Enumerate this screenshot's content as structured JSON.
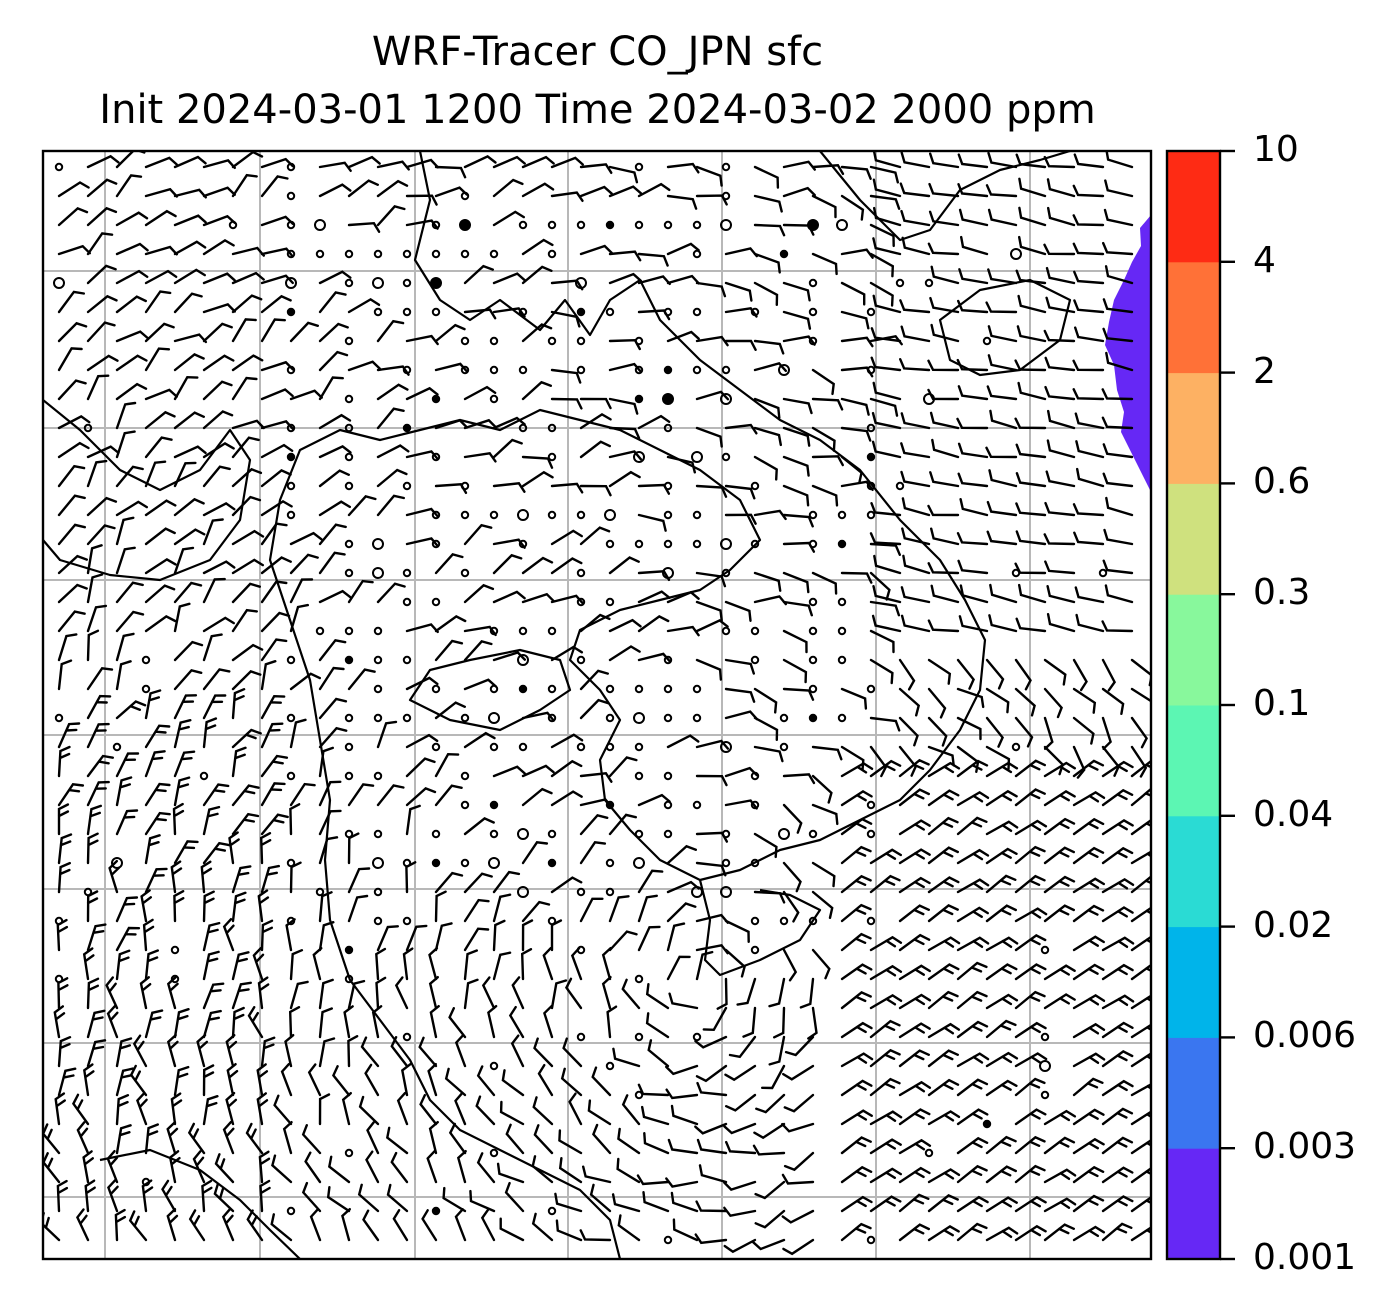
{
  "title": {
    "line1": "WRF-Tracer CO_JPN sfc",
    "line2": "Init 2024-03-01 1200 Time 2024-03-02 2000 ppm"
  },
  "colorbar": {
    "levels": [
      "0.001",
      "0.003",
      "0.006",
      "0.02",
      "0.04",
      "0.1",
      "0.3",
      "0.6",
      "2",
      "4",
      "10"
    ],
    "colors": [
      "#6628f5",
      "#3a76f0",
      "#00b4ea",
      "#2adbd4",
      "#5cf6b3",
      "#88f89c",
      "#cfe17e",
      "#fdb163",
      "#ff7137",
      "#fe2b14"
    ]
  },
  "map": {
    "tracer_fill_color": "#6628f5",
    "gridlines": true,
    "wind_barbs": true
  }
}
